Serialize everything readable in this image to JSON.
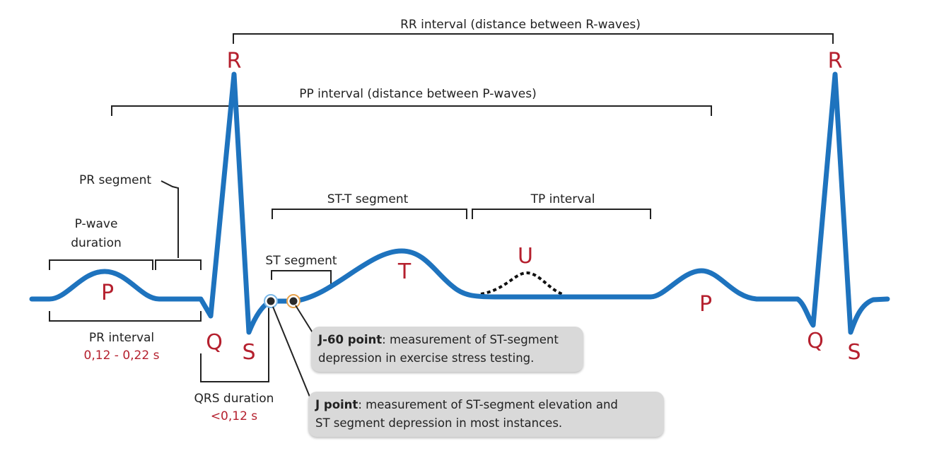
{
  "labels": {
    "rr_interval": "RR interval (distance between R-waves)",
    "pp_interval": "PP interval (distance between P-waves)",
    "pr_segment": "PR segment",
    "p_wave_duration_1": "P-wave",
    "p_wave_duration_2": "duration",
    "st_t_segment": "ST-T segment",
    "tp_interval": "TP interval",
    "st_segment": "ST segment",
    "pr_interval": "PR interval",
    "pr_interval_value": "0,12 - 0,22 s",
    "qrs_duration": "QRS duration",
    "qrs_duration_value": "<0,12 s"
  },
  "waves": {
    "r1": "R",
    "r2": "R",
    "p1": "P",
    "p2": "P",
    "q1": "Q",
    "q2": "Q",
    "s1": "S",
    "s2": "S",
    "t": "T",
    "u": "U"
  },
  "callouts": {
    "j60_title": "J-60 point",
    "j60_text_1": ": measurement of ST-segment",
    "j60_text_2": "depression in exercise stress testing.",
    "j_title": "J point",
    "j_text_1": ": measurement of ST-segment elevation and",
    "j_text_2": "ST segment depression in most instances."
  },
  "colors": {
    "ecg_line": "#1e73be",
    "wave_label": "#b5202e",
    "callout_bg": "#d9d9d9"
  }
}
